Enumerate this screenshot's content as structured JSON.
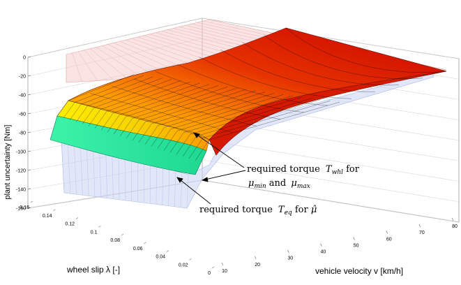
{
  "chart_data": {
    "type": "surface3d",
    "zlabel": "plant uncertainty [Nm]",
    "xlabel": "wheel slip λ [-]",
    "ylabel": "vehicle velocity v [km/h]",
    "z_ticks": [
      "0",
      "-20",
      "-40",
      "-60",
      "-80",
      "-100",
      "-120",
      "-140",
      "-160"
    ],
    "slip_ticks": [
      "0.16",
      "0.14",
      "0.12",
      "0.1",
      "0.08",
      "0.06",
      "0.04",
      "0.02",
      "0"
    ],
    "velocity_ticks": [
      "10",
      "20",
      "30",
      "40",
      "50",
      "60",
      "70",
      "80"
    ],
    "zlim": [
      -160,
      0
    ],
    "xlim": [
      0,
      0.16
    ],
    "ylim": [
      0,
      80
    ],
    "annotations": [
      {
        "text": "required torque",
        "symbol": "T",
        "subscript": "whl",
        "suffix": " for"
      },
      {
        "text": "μ",
        "subscript": "min",
        "middle": " and ",
        "text2": "μ",
        "subscript2": "max"
      },
      {
        "text": "required torque",
        "symbol": "T",
        "subscript": "eq",
        "suffix": " for ",
        "hat": "μ̂"
      }
    ],
    "surfaces": [
      {
        "name": "T_whl for μ_min and μ_max",
        "style": "colored",
        "colors": [
          "#2ff0a0",
          "#f5e600",
          "#ff8a00",
          "#e02000",
          "#b00000"
        ]
      },
      {
        "name": "T_eq for μ̂",
        "style": "transparent-blue",
        "color": "#b8c8f0"
      },
      {
        "name": "upper bound",
        "style": "transparent-pink",
        "color": "#f3c2c2"
      }
    ],
    "grid": true
  }
}
